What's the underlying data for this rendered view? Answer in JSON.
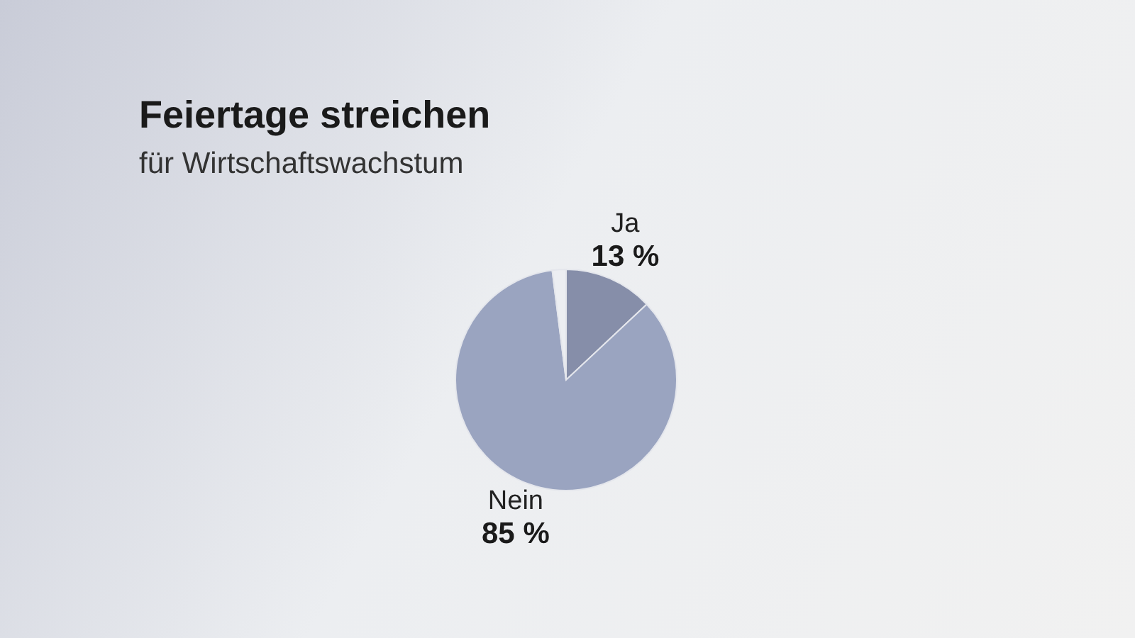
{
  "chart_data": {
    "type": "pie",
    "title": "Feiertage streichen",
    "subtitle": "für Wirtschaftswachstum",
    "categories": [
      "Ja",
      "Nein",
      null
    ],
    "values": [
      13,
      85,
      2
    ],
    "colors": [
      "#868ea9",
      "#9aa4c0",
      "#eceef2"
    ],
    "value_labels": [
      "13 %",
      "85 %",
      null
    ]
  }
}
